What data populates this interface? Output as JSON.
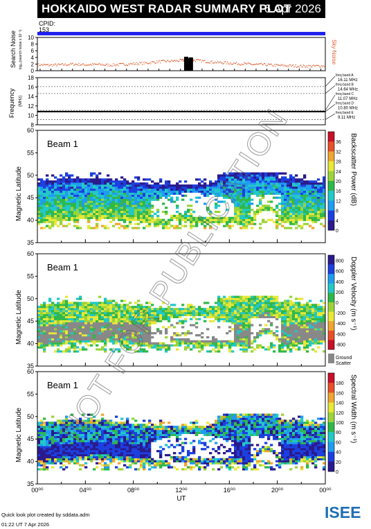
{
  "header": {
    "title": "HOKKAIDO WEST RADAR SUMMARY PLOT",
    "date": "6 Apr 2026"
  },
  "cpid": {
    "label": "CPID:",
    "value": "153"
  },
  "watermark": "NOT FOR PUBLICATION",
  "footer": {
    "credit": "Quick look plot created by sddata.adm",
    "timestamp": "01:22 UT 7 Apr 2026",
    "logo_text": "ISEE",
    "logo_colors": [
      "#1f6fb5",
      "#3aa04a",
      "#1f6fb5",
      "#3aa04a"
    ]
  },
  "colors": {
    "noise_dots": "#e05a2a",
    "sky_noise_label": "#e05a2a",
    "cpid_bar": "#2222ee",
    "ground_scatter": "#888888"
  },
  "chart_data": [
    {
      "type": "scatter",
      "name": "search-noise",
      "ylabel": "Search Noise",
      "ylabel_sub": "log₁₀(search noise x 10⁻³)",
      "right_label": "Sky Noise",
      "ylim": [
        0,
        10
      ],
      "yticks": [
        0,
        2,
        4,
        6,
        8,
        10
      ],
      "xlim": [
        0,
        24
      ],
      "baseline": 2.0,
      "noise_points": [
        [
          0,
          1.9
        ],
        [
          1,
          1.8
        ],
        [
          2,
          1.9
        ],
        [
          3,
          2.1
        ],
        [
          4,
          1.9
        ],
        [
          5,
          2.0
        ],
        [
          6,
          1.8
        ],
        [
          7,
          2.0
        ],
        [
          8,
          2.2
        ],
        [
          9,
          2.4
        ],
        [
          10,
          2.8
        ],
        [
          11,
          3.0
        ],
        [
          12,
          3.2
        ],
        [
          12.5,
          3.5
        ],
        [
          13,
          3.3
        ],
        [
          14,
          2.9
        ],
        [
          15,
          2.6
        ],
        [
          16,
          2.4
        ],
        [
          17,
          2.2
        ],
        [
          18,
          2.0
        ],
        [
          19,
          1.9
        ],
        [
          20,
          1.7
        ],
        [
          21,
          1.6
        ],
        [
          22,
          1.5
        ],
        [
          23,
          1.5
        ],
        [
          24,
          1.6
        ]
      ],
      "spikes": [
        [
          12.4,
          4.2
        ],
        [
          12.6,
          3.8
        ],
        [
          12.8,
          4.0
        ]
      ]
    },
    {
      "type": "line",
      "name": "frequency",
      "ylabel": "Frequency",
      "yunit": "(MHz)",
      "ylim": [
        8,
        18
      ],
      "yticks": [
        8,
        10,
        12,
        14,
        16,
        18
      ],
      "xlim": [
        0,
        24
      ],
      "operating_frequency": 10.8,
      "freq_bands": [
        {
          "label": "freq band A",
          "value": "16.11 MHz",
          "mhz": 16.11
        },
        {
          "label": "freq band B",
          "value": "14.64 MHz",
          "mhz": 14.64
        },
        {
          "label": "freq band C",
          "value": "11.07 MHz",
          "mhz": 11.07
        },
        {
          "label": "freq band D",
          "value": "10.80 MHz",
          "mhz": 10.8
        },
        {
          "label": "freq band E",
          "value": "9.11 MHz",
          "mhz": 9.11
        }
      ]
    },
    {
      "type": "heatmap",
      "name": "backscatter-power",
      "beam_label": "Beam  1",
      "ylabel": "Magnetic Latitude",
      "colorbar_label": "Backscatter Power (dB)",
      "ylim": [
        35,
        60
      ],
      "yticks": [
        35,
        40,
        45,
        50,
        55,
        60
      ],
      "xlim": [
        0,
        24
      ],
      "colorbar_ticks": [
        "0",
        "4",
        "8",
        "12",
        "16",
        "20",
        "24",
        "28",
        "32",
        "36"
      ],
      "palette": [
        "#2a1a8c",
        "#1c3fe0",
        "#1f9cf0",
        "#22c8c8",
        "#2fb84a",
        "#9ad43a",
        "#e8e838",
        "#f0a530",
        "#e8502a",
        "#c8102a"
      ]
    },
    {
      "type": "heatmap",
      "name": "doppler-velocity",
      "beam_label": "Beam  1",
      "ylabel": "Magnetic Latitude",
      "colorbar_label": "Doppler Velocity (m s⁻¹)",
      "ylim": [
        35,
        60
      ],
      "yticks": [
        35,
        40,
        45,
        50,
        55,
        60
      ],
      "xlim": [
        0,
        24
      ],
      "colorbar_ticks": [
        "800",
        "600",
        "400",
        "200",
        "0",
        "-200",
        "-400",
        "-600",
        "-800"
      ],
      "palette": [
        "#2a1a8c",
        "#1c3fe0",
        "#1f9cf0",
        "#22c8c8",
        "#2fb84a",
        "#9ad43a",
        "#e8e838",
        "#f0a530",
        "#e8502a",
        "#c8102a"
      ],
      "ground_scatter_label": "Ground\nScatter"
    },
    {
      "type": "heatmap",
      "name": "spectral-width",
      "beam_label": "Beam  1",
      "ylabel": "Magnetic Latitude",
      "xlabel": "UT",
      "colorbar_label": "Spectral Width (m s⁻¹)",
      "ylim": [
        35,
        60
      ],
      "yticks": [
        35,
        40,
        45,
        50,
        55,
        60
      ],
      "xlim": [
        0,
        24
      ],
      "xticks": [
        "00⁰⁰",
        "04⁰⁰",
        "08⁰⁰",
        "12⁰⁰",
        "16⁰⁰",
        "20⁰⁰",
        "00⁰⁰"
      ],
      "colorbar_ticks": [
        "0",
        "20",
        "40",
        "60",
        "80",
        "100",
        "120",
        "140",
        "160",
        "180"
      ],
      "palette": [
        "#2a1a8c",
        "#1c3fe0",
        "#1f9cf0",
        "#22c8c8",
        "#2fb84a",
        "#9ad43a",
        "#e8e838",
        "#f0a530",
        "#e8502a",
        "#c8102a"
      ]
    }
  ]
}
